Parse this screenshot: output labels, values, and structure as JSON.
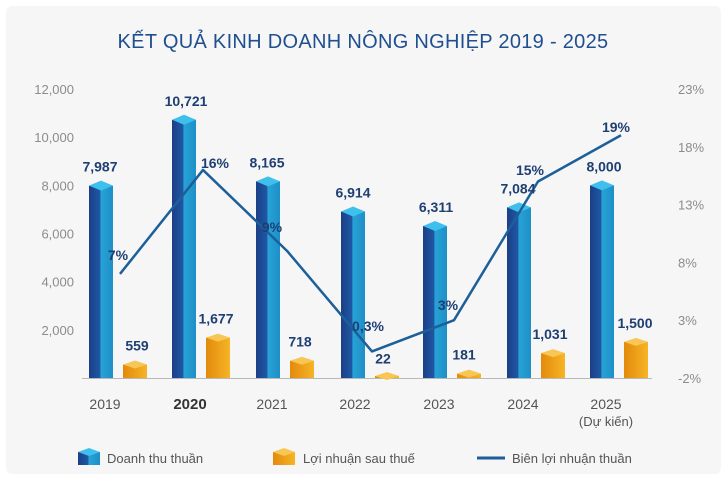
{
  "chart_data": {
    "type": "bar",
    "title": "KẾT QUẢ KINH DOANH NÔNG NGHIỆP 2019 - 2025",
    "categories": [
      "2019",
      "2020",
      "2021",
      "2022",
      "2023",
      "2024",
      "2025"
    ],
    "category_sublabels": [
      "",
      "",
      "",
      "",
      "",
      "",
      "(Dự kiến)"
    ],
    "bold_category": "2020",
    "y_left": {
      "ticks": [
        "12,000",
        "10,000",
        "8,000",
        "6,000",
        "4,000",
        "2,000",
        ""
      ],
      "min": 0,
      "max": 12000
    },
    "y_right": {
      "ticks": [
        "23%",
        "18%",
        "13%",
        "8%",
        "3%",
        "-2%"
      ],
      "min": -2,
      "max": 23
    },
    "series": [
      {
        "name": "Doanh thu thuần",
        "kind": "bar",
        "color": "#1e90c8",
        "values": [
          7987,
          10721,
          8165,
          6914,
          6311,
          7084,
          8000
        ],
        "labels": [
          "7,987",
          "10,721",
          "8,165",
          "6,914",
          "6,311",
          "7,084",
          "8,000"
        ]
      },
      {
        "name": "Lợi nhuận sau thuế",
        "kind": "bar",
        "color": "#f0a81c",
        "values": [
          559,
          1677,
          718,
          22,
          181,
          1031,
          1500
        ],
        "labels": [
          "559",
          "1,677",
          "718",
          "22",
          "181",
          "1,031",
          "1,500"
        ]
      },
      {
        "name": "Biên lợi nhuận thuần",
        "kind": "line",
        "axis": "right",
        "color": "#1d5f99",
        "values": [
          7,
          16,
          9,
          0.3,
          3,
          15,
          19
        ],
        "labels": [
          "7%",
          "16%",
          "9%",
          "0,3%",
          "3%",
          "15%",
          "19%"
        ]
      }
    ]
  }
}
